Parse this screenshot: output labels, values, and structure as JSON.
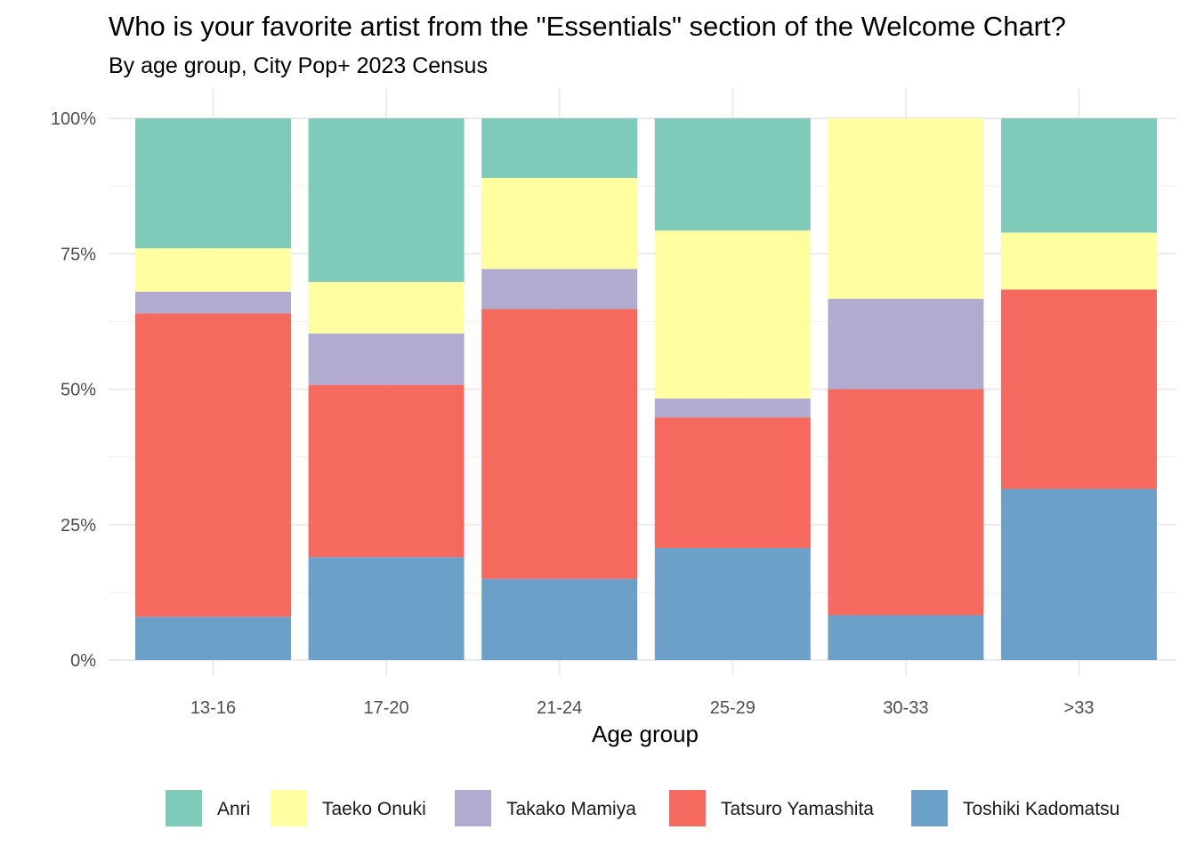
{
  "chart_data": {
    "type": "bar",
    "stacked": "percent",
    "title": "Who is your favorite artist from the \"Essentials\" section of the Welcome Chart?",
    "subtitle": "By age group, City Pop+ 2023 Census",
    "xlabel": "Age group",
    "ylabel": "",
    "ylim": [
      0,
      1
    ],
    "yticks": [
      {
        "value": 0,
        "label": "0%"
      },
      {
        "value": 0.25,
        "label": "25%"
      },
      {
        "value": 0.5,
        "label": "50%"
      },
      {
        "value": 0.75,
        "label": "75%"
      },
      {
        "value": 1,
        "label": "100%"
      }
    ],
    "grid": true,
    "legend_position": "bottom",
    "categories": [
      "13-16",
      "17-20",
      "21-24",
      "25-29",
      "30-33",
      ">33"
    ],
    "series": [
      {
        "name": "Toshiki Kadomatsu",
        "color": "#6BA1C9",
        "values": [
          0.08,
          0.19,
          0.15,
          0.207,
          0.083,
          0.316
        ]
      },
      {
        "name": "Tatsuro Yamashita",
        "color": "#F6695F",
        "values": [
          0.56,
          0.318,
          0.498,
          0.241,
          0.417,
          0.368
        ]
      },
      {
        "name": "Takako Mamiya",
        "color": "#B1ABD0",
        "values": [
          0.04,
          0.095,
          0.074,
          0.035,
          0.167,
          0.0
        ]
      },
      {
        "name": "Taeko Onuki",
        "color": "#FFFFA1",
        "values": [
          0.08,
          0.095,
          0.168,
          0.31,
          0.333,
          0.105
        ]
      },
      {
        "name": "Anri",
        "color": "#7ECBBA",
        "values": [
          0.24,
          0.302,
          0.11,
          0.207,
          0.0,
          0.211
        ]
      }
    ],
    "legend_order": [
      "Anri",
      "Taeko Onuki",
      "Takako Mamiya",
      "Tatsuro Yamashita",
      "Toshiki Kadomatsu"
    ]
  }
}
